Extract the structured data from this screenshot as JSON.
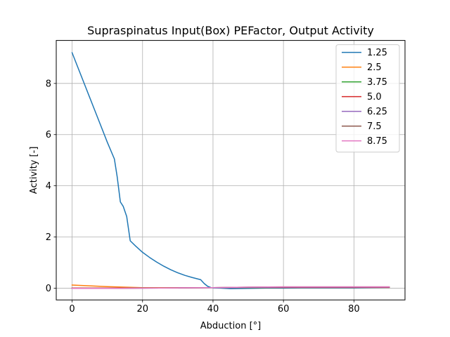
{
  "chart_data": {
    "type": "line",
    "title": "Supraspinatus Input(Box) PEFactor, Output Activity",
    "xlabel": "Abduction [°]",
    "ylabel": "Activity [-]",
    "xlim": [
      -4.5,
      94.5
    ],
    "ylim": [
      -0.46,
      9.68
    ],
    "xticks": [
      0,
      20,
      40,
      60,
      80
    ],
    "yticks": [
      0,
      2,
      4,
      6,
      8
    ],
    "grid": true,
    "legend_position": "upper right",
    "series": [
      {
        "name": "1.25",
        "color": "#1f77b4",
        "x": [
          0,
          2,
          4,
          6,
          8,
          10,
          12,
          12.8,
          13.7,
          14.5,
          15.5,
          16.5,
          18,
          20,
          22,
          24,
          26,
          28,
          30,
          32,
          34,
          36.5,
          37.5,
          38.5,
          39.5,
          40,
          42,
          45,
          50,
          55,
          60,
          65,
          70,
          75,
          80,
          85,
          90
        ],
        "y": [
          9.2,
          8.5,
          7.8,
          7.1,
          6.4,
          5.7,
          5.05,
          4.35,
          3.37,
          3.2,
          2.8,
          1.85,
          1.65,
          1.4,
          1.2,
          1.02,
          0.86,
          0.72,
          0.6,
          0.5,
          0.42,
          0.33,
          0.18,
          0.07,
          0.02,
          0.01,
          0.0,
          -0.02,
          -0.01,
          0.0,
          0.0,
          0.01,
          0.01,
          0.01,
          0.01,
          0.02,
          0.03
        ]
      },
      {
        "name": "2.5",
        "color": "#ff7f0e",
        "x": [
          0,
          5,
          10,
          15,
          20,
          25,
          30,
          40,
          50,
          60,
          70,
          80,
          90
        ],
        "y": [
          0.12,
          0.09,
          0.06,
          0.04,
          0.02,
          0.02,
          0.02,
          0.02,
          0.02,
          0.03,
          0.03,
          0.03,
          0.04
        ]
      },
      {
        "name": "3.75",
        "color": "#2ca02c",
        "x": [
          0,
          10,
          20,
          30,
          40,
          50,
          60,
          70,
          80,
          90
        ],
        "y": [
          0.0,
          0.0,
          0.01,
          0.01,
          0.02,
          0.02,
          0.03,
          0.03,
          0.03,
          0.03
        ]
      },
      {
        "name": "5.0",
        "color": "#d62728",
        "x": [
          0,
          10,
          20,
          30,
          40,
          50,
          60,
          70,
          80,
          90
        ],
        "y": [
          0.0,
          0.0,
          0.01,
          0.01,
          0.02,
          0.03,
          0.03,
          0.03,
          0.03,
          0.03
        ]
      },
      {
        "name": "6.25",
        "color": "#9467bd",
        "x": [
          0,
          10,
          20,
          30,
          40,
          50,
          60,
          70,
          80,
          90
        ],
        "y": [
          -0.01,
          -0.01,
          0.0,
          0.01,
          0.02,
          0.03,
          0.04,
          0.04,
          0.04,
          0.04
        ]
      },
      {
        "name": "7.5",
        "color": "#8c564b",
        "x": [
          0,
          10,
          20,
          30,
          40,
          50,
          60,
          70,
          80,
          90
        ],
        "y": [
          -0.01,
          -0.01,
          0.0,
          0.01,
          0.02,
          0.04,
          0.05,
          0.05,
          0.05,
          0.05
        ]
      },
      {
        "name": "8.75",
        "color": "#e377c2",
        "x": [
          0,
          10,
          20,
          30,
          40,
          50,
          60,
          70,
          80,
          90
        ],
        "y": [
          -0.01,
          -0.01,
          0.0,
          0.01,
          0.02,
          0.04,
          0.05,
          0.05,
          0.05,
          0.05
        ]
      }
    ]
  }
}
